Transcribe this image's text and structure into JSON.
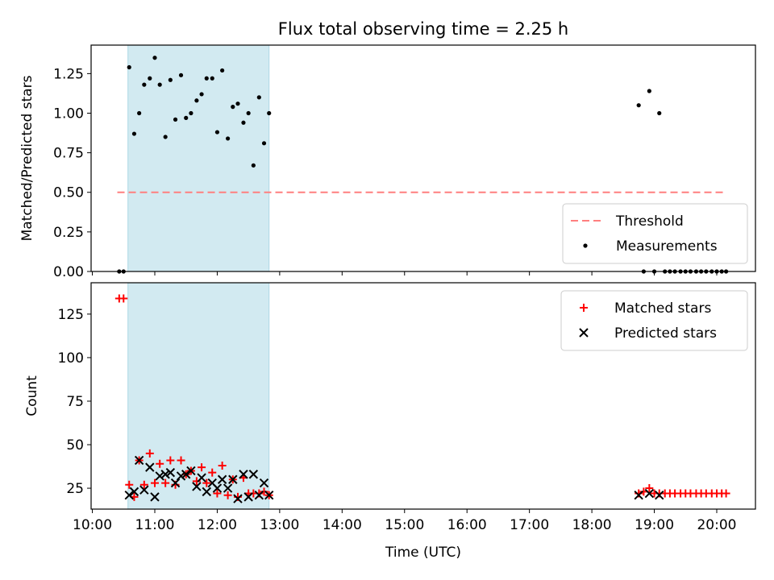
{
  "chart_data": {
    "title": "Flux total observing time = 2.25 h",
    "xlabel": "Time (UTC)",
    "x_ticks": [
      "10:00",
      "11:00",
      "12:00",
      "13:00",
      "14:00",
      "15:00",
      "16:00",
      "17:00",
      "18:00",
      "19:00",
      "20:00"
    ],
    "x_range_hours": [
      9.98,
      20.62
    ],
    "observing_window_hours": [
      10.57,
      12.83
    ],
    "colors": {
      "shade": "#add8e6",
      "threshold": "#ff7f7f",
      "matched": "#ff0000",
      "predicted": "#000000",
      "measurement": "#000000"
    },
    "panels": [
      {
        "type": "scatter",
        "ylabel": "Matched/Predicted stars",
        "ylim": [
          0,
          1.43
        ],
        "y_ticks": [
          "0.00",
          "0.25",
          "0.50",
          "0.75",
          "1.00",
          "1.25"
        ],
        "legend_position": "lower-right",
        "threshold": {
          "name": "Threshold",
          "value": 0.5,
          "x_range": [
            10.4,
            20.15
          ]
        },
        "series": [
          {
            "name": "Measurements",
            "x": [
              10.43,
              10.5,
              10.59,
              10.67,
              10.75,
              10.83,
              10.92,
              11.0,
              11.08,
              11.17,
              11.25,
              11.33,
              11.42,
              11.5,
              11.58,
              11.67,
              11.75,
              11.83,
              11.92,
              12.0,
              12.08,
              12.17,
              12.25,
              12.33,
              12.42,
              12.5,
              12.58,
              12.67,
              12.75,
              12.83,
              18.75,
              18.83,
              18.92,
              19.0,
              19.08,
              19.17,
              19.25,
              19.33,
              19.42,
              19.5,
              19.58,
              19.67,
              19.75,
              19.83,
              19.92,
              20.0,
              20.08,
              20.15
            ],
            "y": [
              0,
              0,
              1.29,
              0.87,
              1.0,
              1.18,
              1.22,
              1.35,
              1.18,
              0.85,
              1.21,
              0.96,
              1.24,
              0.97,
              1.0,
              1.08,
              1.12,
              1.22,
              1.22,
              0.88,
              1.27,
              0.84,
              1.04,
              1.06,
              0.94,
              1.0,
              0.67,
              1.1,
              0.81,
              1.0,
              1.05,
              0,
              1.14,
              0,
              1.0,
              0,
              0,
              0,
              0,
              0,
              0,
              0,
              0,
              0,
              0,
              0,
              0,
              0
            ]
          }
        ]
      },
      {
        "type": "scatter",
        "ylabel": "Count",
        "ylim": [
          13,
          143
        ],
        "y_ticks": [
          "25",
          "50",
          "75",
          "100",
          "125"
        ],
        "legend_position": "upper-right",
        "series": [
          {
            "name": "Matched stars",
            "marker": "plus",
            "x": [
              10.43,
              10.5,
              10.59,
              10.67,
              10.75,
              10.83,
              10.92,
              11.0,
              11.08,
              11.17,
              11.25,
              11.33,
              11.42,
              11.5,
              11.58,
              11.67,
              11.75,
              11.83,
              11.92,
              12.0,
              12.08,
              12.17,
              12.25,
              12.33,
              12.42,
              12.5,
              12.58,
              12.67,
              12.75,
              12.83,
              18.75,
              18.83,
              18.92,
              19.0,
              19.08,
              19.17,
              19.25,
              19.33,
              19.42,
              19.5,
              19.58,
              19.67,
              19.75,
              19.83,
              19.92,
              20.0,
              20.08,
              20.15
            ],
            "y": [
              134,
              134,
              27,
              20,
              41,
              27,
              45,
              28,
              39,
              28,
              41,
              27,
              41,
              33,
              35,
              29,
              37,
              28,
              34,
              22,
              38,
              21,
              30,
              20,
              31,
              22,
              22,
              22,
              23,
              21,
              22,
              23,
              25,
              22,
              22,
              22,
              22,
              22,
              22,
              22,
              22,
              22,
              22,
              22,
              22,
              22,
              22,
              22
            ]
          },
          {
            "name": "Predicted stars",
            "marker": "x",
            "x": [
              10.59,
              10.67,
              10.75,
              10.83,
              10.92,
              11.0,
              11.08,
              11.17,
              11.25,
              11.33,
              11.42,
              11.5,
              11.58,
              11.67,
              11.75,
              11.83,
              11.92,
              12.0,
              12.08,
              12.17,
              12.25,
              12.33,
              12.42,
              12.5,
              12.58,
              12.67,
              12.75,
              12.83,
              18.75,
              18.92,
              19.08
            ],
            "y": [
              21,
              23,
              41,
              24,
              37,
              20,
              32,
              33,
              34,
              28,
              32,
              33,
              35,
              26,
              31,
              23,
              28,
              25,
              30,
              25,
              30,
              19,
              33,
              20,
              33,
              21,
              28,
              21,
              21,
              22,
              21
            ]
          }
        ]
      }
    ]
  }
}
